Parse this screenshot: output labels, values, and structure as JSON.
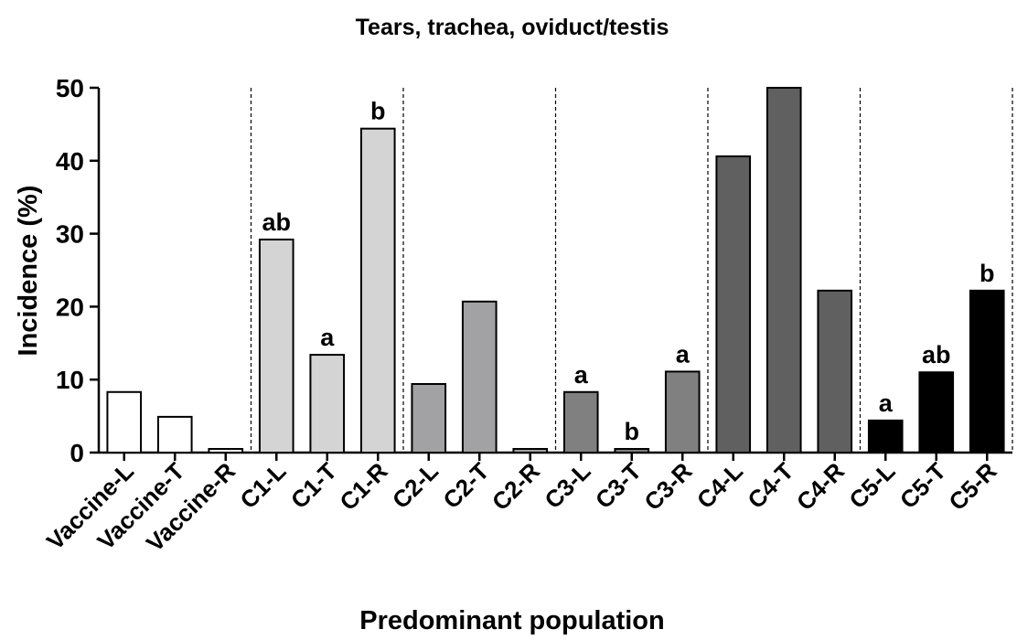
{
  "chart_data": {
    "type": "bar",
    "title": "Tears, trachea, oviduct/testis",
    "xlabel": "Predominant population",
    "ylabel": "Incidence (%)",
    "categories": [
      "Vaccine-L",
      "Vaccine-T",
      "Vaccine-R",
      "C1-L",
      "C1-T",
      "C1-R",
      "C2-L",
      "C2-T",
      "C2-R",
      "C3-L",
      "C3-T",
      "C3-R",
      "C4-L",
      "C4-T",
      "C4-R",
      "C5-L",
      "C5-T",
      "C5-R"
    ],
    "values": [
      8.3,
      4.9,
      0.5,
      29.2,
      13.4,
      44.4,
      9.4,
      20.7,
      0.5,
      8.3,
      0.5,
      11.1,
      40.6,
      50,
      22.2,
      4.4,
      11.0,
      22.2
    ],
    "colors": [
      "#ffffff",
      "#ffffff",
      "#ffffff",
      "#d4d4d4",
      "#d4d4d4",
      "#d4d4d4",
      "#a2a2a4",
      "#a2a2a4",
      "#a2a2a4",
      "#808080",
      "#808080",
      "#808080",
      "#606060",
      "#606060",
      "#606060",
      "#000000",
      "#000000",
      "#000000"
    ],
    "annotations": [
      null,
      null,
      null,
      "ab",
      "a",
      "b",
      null,
      null,
      null,
      "a",
      "b",
      "a",
      null,
      null,
      null,
      "a",
      "ab",
      "b"
    ],
    "ylim": [
      0,
      50
    ],
    "yticks": [
      0,
      10,
      20,
      30,
      40,
      50
    ]
  }
}
